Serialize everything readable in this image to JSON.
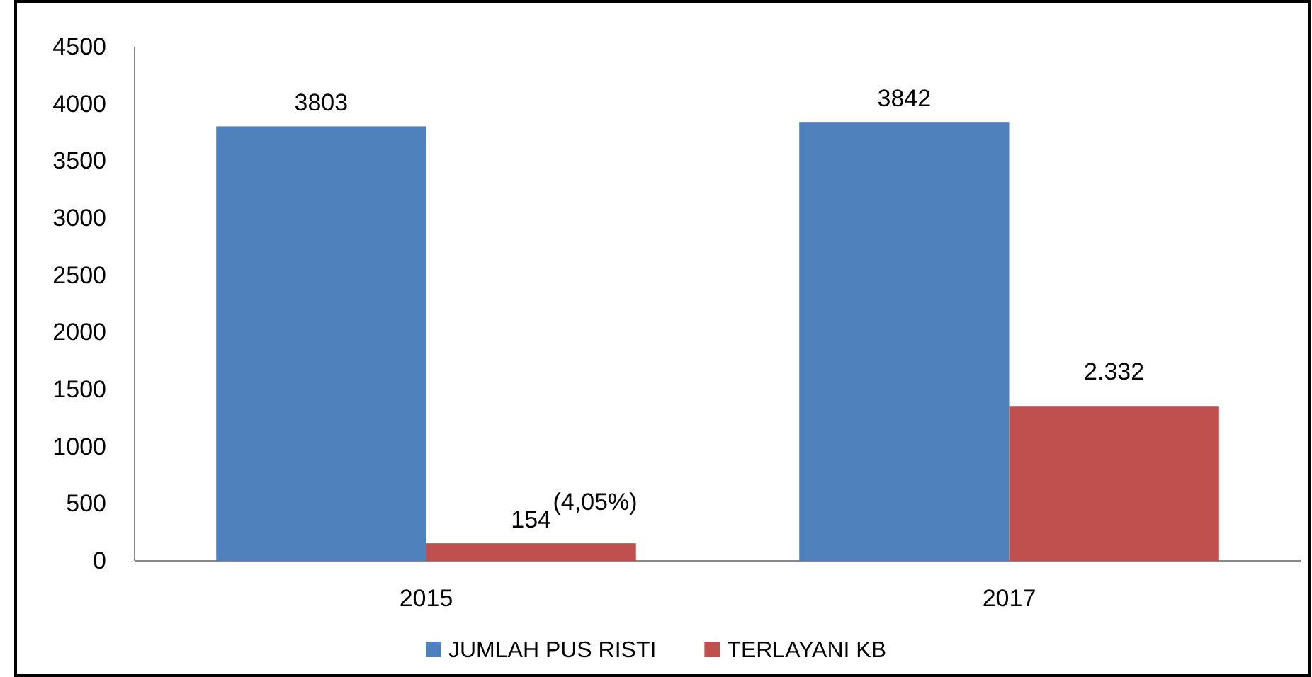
{
  "chart_data": {
    "type": "bar",
    "categories": [
      "2015",
      "2017"
    ],
    "series": [
      {
        "name": "JUMLAH PUS RISTI",
        "color": "#4f81bd",
        "values": [
          3803,
          3842
        ],
        "value_labels": [
          "3803",
          "3842"
        ]
      },
      {
        "name": "TERLAYANI KB",
        "color": "#c0504d",
        "values": [
          154,
          1350
        ],
        "value_labels": [
          "154",
          null
        ]
      }
    ],
    "ylim": [
      0,
      4500
    ],
    "yticks": [
      0,
      500,
      1000,
      1500,
      2000,
      2500,
      3000,
      3500,
      4000,
      4500
    ],
    "annotations": [
      "(4,05%)",
      "2.332"
    ],
    "grid": false,
    "legend": "bottom"
  }
}
